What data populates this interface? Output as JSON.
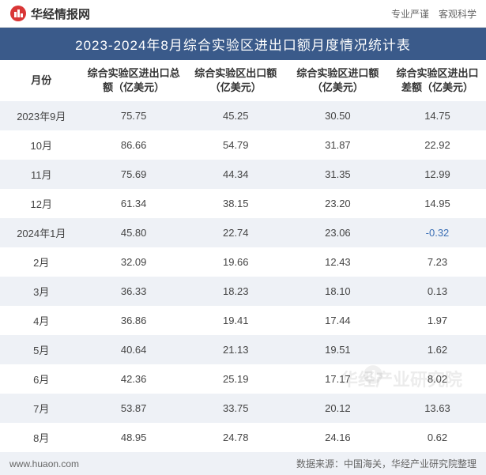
{
  "header": {
    "logo_text": "华经情报网",
    "logo_icon_fill": "#d93636",
    "right_text": "专业严谨　客观科学"
  },
  "title": "2023-2024年8月综合实验区进出口额月度情况统计表",
  "title_bg": "#3a5a8a",
  "title_color": "#ffffff",
  "columns": [
    "月份",
    "综合实验区进出口总额（亿美元）",
    "综合实验区出口额（亿美元）",
    "综合实验区进口额（亿美元）",
    "综合实验区进出口差额（亿美元）"
  ],
  "rows": [
    {
      "month": "2023年9月",
      "total": "75.75",
      "exports": "45.25",
      "imports": "30.50",
      "diff": "14.75",
      "negative": false
    },
    {
      "month": "10月",
      "total": "86.66",
      "exports": "54.79",
      "imports": "31.87",
      "diff": "22.92",
      "negative": false
    },
    {
      "month": "11月",
      "total": "75.69",
      "exports": "44.34",
      "imports": "31.35",
      "diff": "12.99",
      "negative": false
    },
    {
      "month": "12月",
      "total": "61.34",
      "exports": "38.15",
      "imports": "23.20",
      "diff": "14.95",
      "negative": false
    },
    {
      "month": "2024年1月",
      "total": "45.80",
      "exports": "22.74",
      "imports": "23.06",
      "diff": "-0.32",
      "negative": true
    },
    {
      "month": "2月",
      "total": "32.09",
      "exports": "19.66",
      "imports": "12.43",
      "diff": "7.23",
      "negative": false
    },
    {
      "month": "3月",
      "total": "36.33",
      "exports": "18.23",
      "imports": "18.10",
      "diff": "0.13",
      "negative": false
    },
    {
      "month": "4月",
      "total": "36.86",
      "exports": "19.41",
      "imports": "17.44",
      "diff": "1.97",
      "negative": false
    },
    {
      "month": "5月",
      "total": "40.64",
      "exports": "21.13",
      "imports": "19.51",
      "diff": "1.62",
      "negative": false
    },
    {
      "month": "6月",
      "total": "42.36",
      "exports": "25.19",
      "imports": "17.17",
      "diff": "8.02",
      "negative": false
    },
    {
      "month": "7月",
      "total": "53.87",
      "exports": "33.75",
      "imports": "20.12",
      "diff": "13.63",
      "negative": false
    },
    {
      "month": "8月",
      "total": "48.95",
      "exports": "24.78",
      "imports": "24.16",
      "diff": "0.62",
      "negative": false
    }
  ],
  "row_odd_bg": "#eef1f6",
  "row_even_bg": "#ffffff",
  "negative_color": "#3b6fb5",
  "footer": {
    "url": "www.huaon.com",
    "source": "数据来源：中国海关，华经产业研究院整理"
  },
  "watermark": "华经产业研究院"
}
